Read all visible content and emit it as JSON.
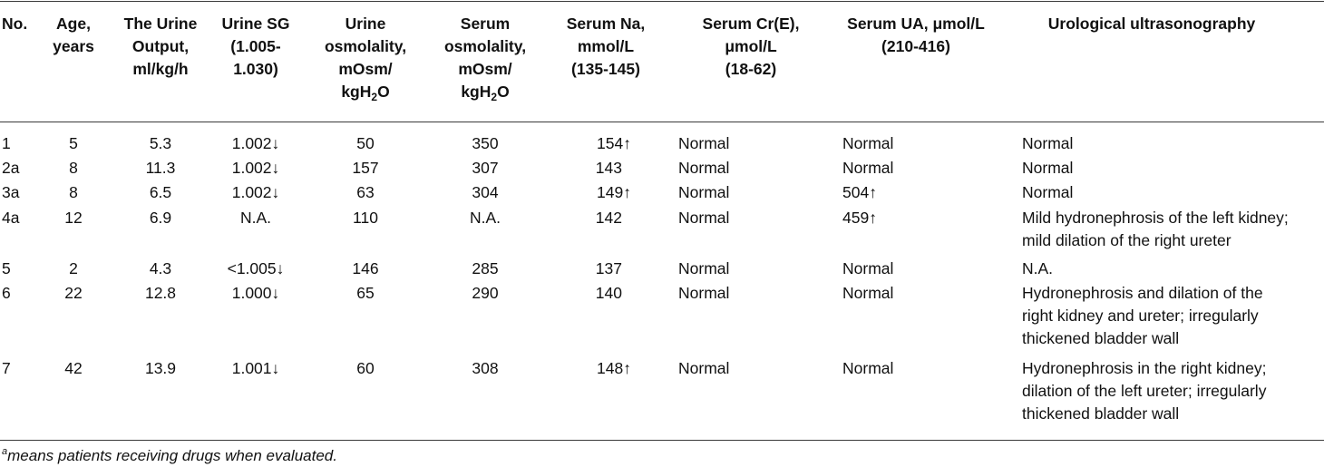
{
  "table": {
    "headers": [
      {
        "lines": [
          "No."
        ]
      },
      {
        "lines": [
          "Age,",
          "years"
        ]
      },
      {
        "lines": [
          "The Urine",
          "Output,",
          "ml/kg/h"
        ]
      },
      {
        "lines": [
          "Urine SG",
          "(1.005-",
          "1.030)"
        ]
      },
      {
        "lines": [
          "Urine",
          "osmolality,",
          "mOsm/",
          "kgH",
          "2",
          "O"
        ]
      },
      {
        "lines": [
          "Serum",
          "osmolality,",
          "mOsm/",
          "kgH",
          "2",
          "O"
        ]
      },
      {
        "lines": [
          "Serum Na,",
          "mmol/L",
          "(135-145)"
        ]
      },
      {
        "lines": [
          "Serum Cr(E),",
          "μmol/L",
          "(18-62)"
        ]
      },
      {
        "lines": [
          "Serum UA, μmol/L",
          "(210-416)"
        ]
      },
      {
        "lines": [
          "Urological ultrasonography"
        ]
      }
    ],
    "rows": [
      {
        "no": "1",
        "age": "5",
        "output": "5.3",
        "sg": "1.002↓",
        "uosm": "50",
        "sosm": "350",
        "na": "154↑",
        "cr": "Normal",
        "ua": "Normal",
        "us": [
          "Normal"
        ]
      },
      {
        "no": "2a",
        "age": "8",
        "output": "11.3",
        "sg": "1.002↓",
        "uosm": "157",
        "sosm": "307",
        "na": "143",
        "cr": "Normal",
        "ua": "Normal",
        "us": [
          "Normal"
        ]
      },
      {
        "no": "3a",
        "age": "8",
        "output": "6.5",
        "sg": "1.002↓",
        "uosm": "63",
        "sosm": "304",
        "na": "149↑",
        "cr": "Normal",
        "ua": "504↑",
        "us": [
          "Normal"
        ]
      },
      {
        "no": "4a",
        "age": "12",
        "output": "6.9",
        "sg": "N.A.",
        "uosm": "110",
        "sosm": "N.A.",
        "na": "142",
        "cr": "Normal",
        "ua": "459↑",
        "us": [
          "Mild hydronephrosis of the left kidney;",
          "mild dilation of the right ureter"
        ]
      },
      {
        "no": "5",
        "age": "2",
        "output": "4.3",
        "sg": "<1.005↓",
        "uosm": "146",
        "sosm": "285",
        "na": "137",
        "cr": "Normal",
        "ua": "Normal",
        "us": [
          "N.A."
        ]
      },
      {
        "no": "6",
        "age": "22",
        "output": "12.8",
        "sg": "1.000↓",
        "uosm": "65",
        "sosm": "290",
        "na": "140",
        "cr": "Normal",
        "ua": "Normal",
        "us": [
          "Hydronephrosis and dilation of the",
          "right kidney and ureter; irregularly",
          "thickened bladder wall"
        ]
      },
      {
        "no": "7",
        "age": "42",
        "output": "13.9",
        "sg": "1.001↓",
        "uosm": "60",
        "sosm": "308",
        "na": "148↑",
        "cr": "Normal",
        "ua": "Normal",
        "us": [
          "Hydronephrosis in the right kidney;",
          "dilation of the left ureter; irregularly",
          "thickened bladder wall"
        ]
      }
    ]
  },
  "footnote": {
    "marker": "a",
    "text": "means patients receiving drugs when evaluated."
  }
}
